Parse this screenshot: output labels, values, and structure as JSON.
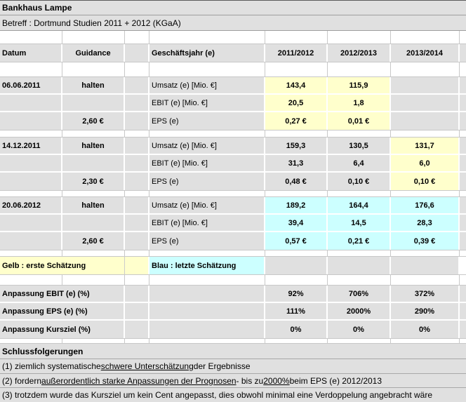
{
  "window": {
    "title": "Bankhaus Lampe",
    "subject": "Betreff : Dortmund Studien 2011 + 2012 (KGaA)"
  },
  "colors": {
    "first_estimate_yellow": "#FFFFCC",
    "last_estimate_cyan": "#CCFFFF",
    "row_grey": "#E0E0E0"
  },
  "table": {
    "headers": {
      "datum": "Datum",
      "guidance": "Guidance",
      "geschaeftsjahr": "Geschäftsjahr (e)",
      "year1": "2011/2012",
      "year2": "2012/2013",
      "year3": "2013/2014"
    },
    "metric_labels": {
      "umsatz": "Umsatz (e) [Mio. €]",
      "ebit": "EBIT (e) [Mio. €]",
      "eps": "EPS (e)"
    },
    "blocks": [
      {
        "date": "06.06.2011",
        "guidance": "halten",
        "kursziel": "2,60 €",
        "umsatz": [
          "143,4",
          "115,9",
          ""
        ],
        "ebit": [
          "20,5",
          "1,8",
          ""
        ],
        "eps": [
          "0,27 €",
          "0,01 €",
          ""
        ]
      },
      {
        "date": "14.12.2011",
        "guidance": "halten",
        "kursziel": "2,30 €",
        "umsatz": [
          "159,3",
          "130,5",
          "131,7"
        ],
        "ebit": [
          "31,3",
          "6,4",
          "6,0"
        ],
        "eps": [
          "0,48 €",
          "0,10 €",
          "0,10 €"
        ]
      },
      {
        "date": "20.06.2012",
        "guidance": "halten",
        "kursziel": "2,60 €",
        "umsatz": [
          "189,2",
          "164,4",
          "176,6"
        ],
        "ebit": [
          "39,4",
          "14,5",
          "28,3"
        ],
        "eps": [
          "0,57 €",
          "0,21 €",
          "0,39 €"
        ]
      }
    ]
  },
  "legend": {
    "yellow": "Gelb : erste Schätzung",
    "blue": "Blau : letzte Schätzung"
  },
  "adjustments": {
    "ebit": {
      "label": "Anpassung EBIT (e) (%)",
      "values": [
        "92%",
        "706%",
        "372%"
      ]
    },
    "eps": {
      "label": "Anpassung EPS (e) (%)",
      "values": [
        "111%",
        "2000%",
        "290%"
      ]
    },
    "kursziel": {
      "label": "Anpassung Kursziel (%)",
      "values": [
        "0%",
        "0%",
        "0%"
      ]
    }
  },
  "conclusions": {
    "heading": "Schlussfolgerungen",
    "line1_pre": "(1) ziemlich systematische ",
    "line1_underline": "schwere Unterschätzung",
    "line1_post": " der Ergebnisse",
    "line2_pre": "(2) fordern ",
    "line2_underline1": "außerordentlich starke Anpassungen der Prognosen",
    "line2_mid": " - bis zu ",
    "line2_underline2": "2000%",
    "line2_post": " beim EPS (e) 2012/2013",
    "line3": "(3) trotzdem wurde das Kursziel um kein Cent angepasst, dies obwohl minimal eine Verdoppelung angebracht wäre"
  }
}
